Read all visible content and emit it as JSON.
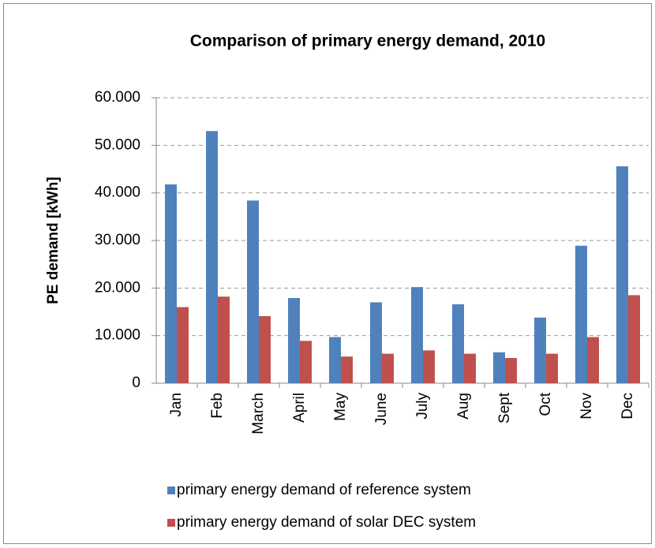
{
  "chart_data": {
    "type": "bar",
    "title": "Comparison of primary energy demand, 2010",
    "y_label": "PE demand [kWh]",
    "categories": [
      "Jan",
      "Feb",
      "March",
      "April",
      "May",
      "June",
      "July",
      "Aug",
      "Sept",
      "Oct",
      "Nov",
      "Dec"
    ],
    "series": [
      {
        "name": "primary energy demand of reference system",
        "color": "#4f81bd",
        "values": [
          41800,
          53000,
          38400,
          17900,
          9700,
          17000,
          20200,
          16600,
          6500,
          13800,
          28900,
          45600
        ]
      },
      {
        "name": "primary energy demand of solar DEC system",
        "color": "#c0504d",
        "values": [
          16000,
          18200,
          14100,
          8900,
          5600,
          6200,
          6900,
          6200,
          5300,
          6200,
          9700,
          18500
        ]
      }
    ],
    "ylim": [
      0,
      60000
    ],
    "yticks": [
      0,
      {
        "value": 10000,
        "label": "10.000"
      },
      {
        "value": 20000,
        "label": "20.000"
      },
      {
        "value": 30000,
        "label": "30.000"
      },
      {
        "value": 40000,
        "label": "40.000"
      },
      {
        "value": 50000,
        "label": "50.000"
      },
      {
        "value": 60000,
        "label": "60.000"
      }
    ],
    "grid": true,
    "legend": "bottom"
  }
}
